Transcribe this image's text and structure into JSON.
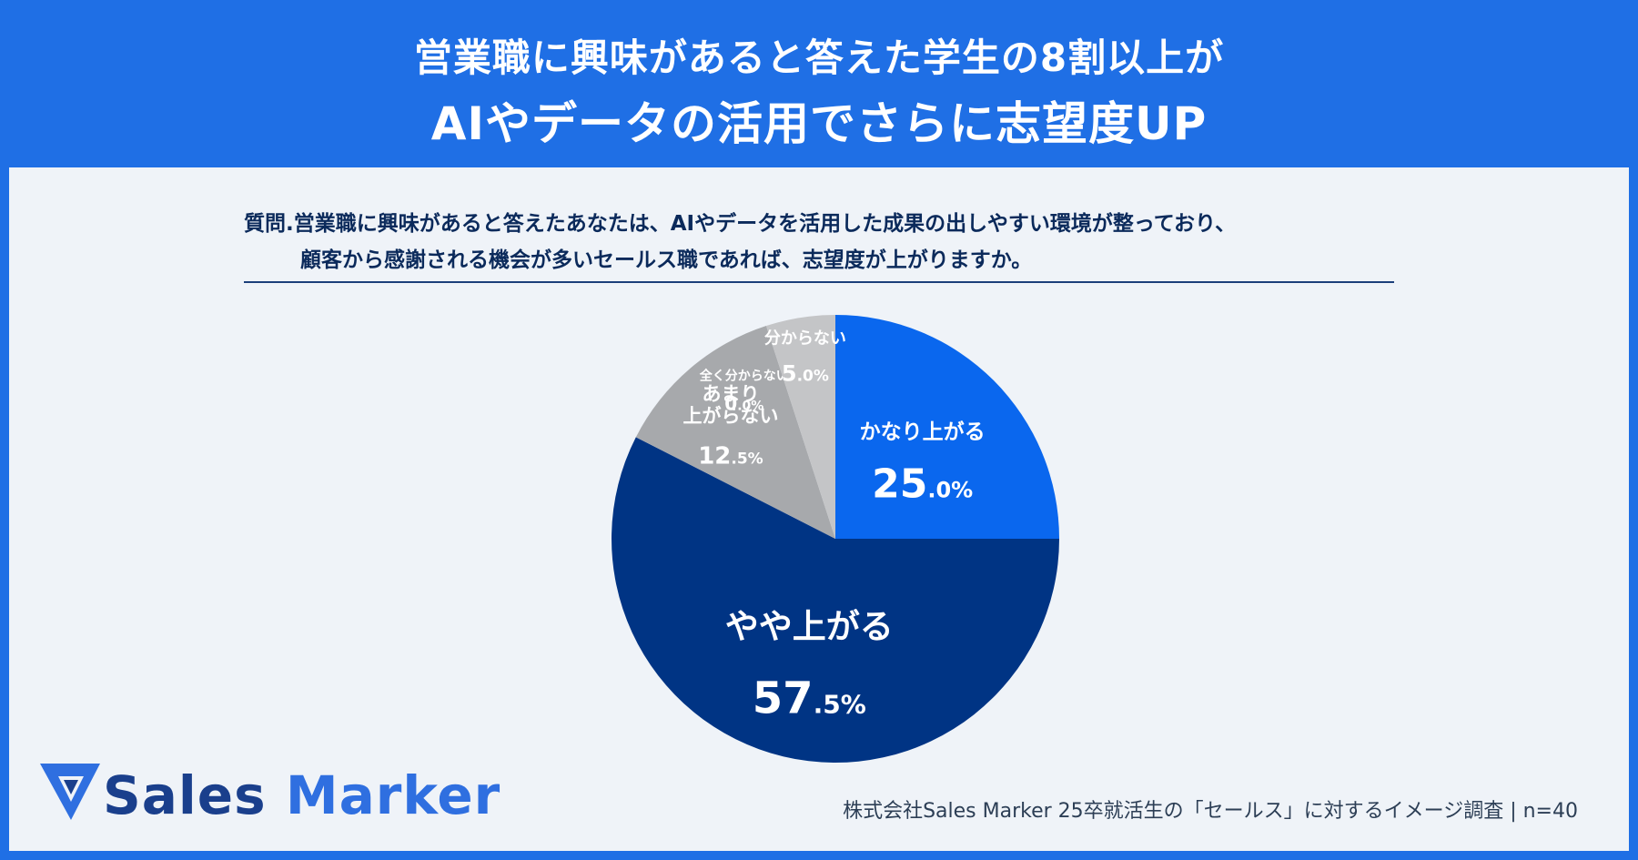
{
  "header": {
    "line1": "営業職に興味があると答えた学生の8割以上が",
    "line2": "AIやデータの活用でさらに志望度UP"
  },
  "question": {
    "line1": "質問.営業職に興味があると答えたあなたは、AIやデータを活用した成果の出しやすい環境が整っており、",
    "line2": "顧客から感謝される機会が多いセールス職であれば、志望度が上がりますか。"
  },
  "chart_data": {
    "type": "pie",
    "slices": [
      {
        "label": "かなり上がる",
        "value": 25.0,
        "int": "25",
        "dec": ".0%",
        "color": "#0a67ee"
      },
      {
        "label": "やや上がる",
        "value": 57.5,
        "int": "57",
        "dec": ".5%",
        "color": "#003484"
      },
      {
        "label": "あまり上がらない",
        "label_lines": [
          "あまり",
          "上がらない"
        ],
        "value": 12.5,
        "int": "12",
        "dec": ".5%",
        "color": "#a7a9ac"
      },
      {
        "label": "全く分からない",
        "value": 0.0,
        "int": "0",
        "dec": ".0%",
        "color": "#a7a9ac"
      },
      {
        "label": "分からない",
        "value": 5.0,
        "int": "5",
        "dec": ".0%",
        "color": "#c4c5c7"
      }
    ]
  },
  "logo": {
    "word1": "Sales",
    "word2": "Marker"
  },
  "source": "株式会社Sales Marker 25卒就活生の「セールス」に対するイメージ調査 | n=40"
}
